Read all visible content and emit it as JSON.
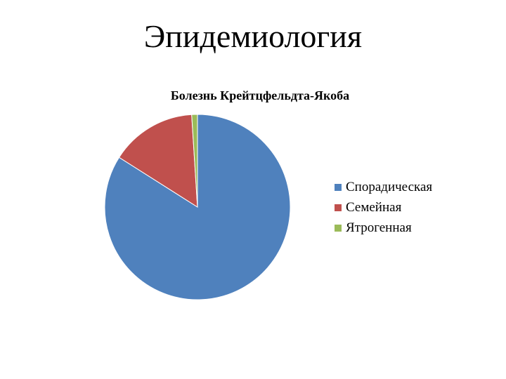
{
  "slide": {
    "title": "Эпидемиология"
  },
  "chart_data": {
    "type": "pie",
    "title": "Болезнь Крейтцфельдта-Якоба",
    "categories": [
      "Спорадическая",
      "Семейная",
      "Ятрогенная"
    ],
    "values": [
      84,
      15,
      1
    ],
    "colors": [
      "#4F81BD",
      "#C0504D",
      "#9BBB59"
    ],
    "legend": "right"
  }
}
